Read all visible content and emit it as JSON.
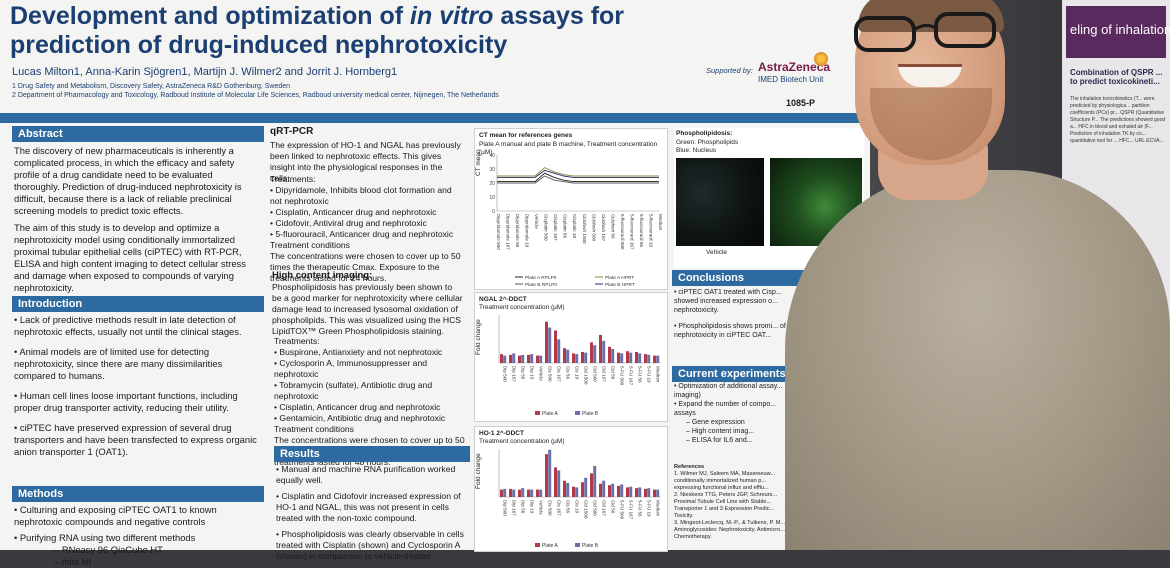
{
  "poster": {
    "title_line1": "Development and optimization of",
    "title_italic": "in vitro",
    "title_line1_end": "assays for",
    "title_line2": "prediction of drug-induced nephrotoxicity",
    "authors": "Lucas Milton1, Anna-Karin Sjögren1, Martijn J. Wilmer2 and Jorrit J. Hornberg1",
    "aff1": "1 Drug Safety and Metabolism, Discovery Safety, AstraZeneca R&D Gothenburg, Sweden",
    "aff2": "2 Department of Pharmacology and Toxicology, Radboud Institute of Molecular Life Sciences, Radboud university medical center, Nijmegen, The Netherlands",
    "supported_by": "Supported by:",
    "sponsor": "AstraZeneca",
    "sponsor_unit": "IMED Biotech Unit",
    "poster_number": "1085-P",
    "abstract": {
      "heading": "Abstract",
      "p1": "The discovery of new pharmaceuticals is inherently a complicated process, in which the efficacy and safety profile of a drug candidate need to be evaluated thoroughly. Prediction of drug-induced nephrotoxicity is difficult, because there is a lack of reliable preclinical screening models to predict toxic effects.",
      "p2": "The aim of this study is to develop and optimize a nephrotoxicity model using conditionally immortalized proximal tubular epithelial cells (ciPTEC) with RT-PCR, ELISA and high content imaging to detect cellular stress and damage when exposed to compounds of varying nephrotoxicity."
    },
    "introduction": {
      "heading": "Introduction",
      "items": [
        "Lack of predictive methods result in late detection of nephrotoxic effects, usually not until the clinical stages.",
        "Animal models are of limited use for detecting nephrotoxicity, since there are many dissimilarities compared to humans.",
        "Human cell lines loose important functions, including proper drug transporter activity, reducing their utility.",
        "ciPTEC have preserved expression of several drug transporters and have been transfected to express organic anion transporter 1 (OAT1)."
      ]
    },
    "methods": {
      "heading": "Methods",
      "items": [
        "Culturing and exposing ciPTEC OAT1 to known nephrotoxic compounds and negative controls",
        "Purifying RNA using two different methods",
        "RNeasy 96 QiaCube HT",
        "mini kit"
      ]
    },
    "qrtpcr": {
      "heading": "qRT-PCR",
      "intro": "The expression of HO-1 and NGAL has previously been linked to nephrotoxic effects. This gives insight into the physiological responses in the cells.",
      "treatments_label": "Treatments:",
      "treatments": [
        "Dipyridamole, Inhibits blood clot formation and not nephrotoxic",
        "Cisplatin, Anticancer drug and nephrotoxic",
        "Cidofovir, Antiviral drug and nephrotoxic",
        "5-fluorouracil, Anticancer drug and nephrotoxic"
      ],
      "conditions": "Treatment conditions",
      "conditions_text": "The concentrations were chosen to cover up to 50 times the therapeutic Cmax. Exposure to the treatments lasted for 24 hours."
    },
    "hci": {
      "heading": "High content imaging:",
      "intro": "Phospholipidosis has previously been shown to be a good marker for nephrotoxicity where cellular damage lead to increased lysosomal oxidation of phospholipids. This was visualized using the HCS LipidTOX™ Green Phospholipidosis staining.",
      "treatments_label": "Treatments:",
      "treatments": [
        "Buspirone, Antianxiety and not nephrotoxic",
        "Cyclosporin A, Immunosuppresser and nephrotoxic",
        "Tobramycin (sulfate), Antibiotic drug and nephrotoxic",
        "Cisplatin, Anticancer drug and nephrotoxic",
        "Gentamicin, Antibiotic drug and nephrotoxic"
      ],
      "conditions": "Treatment conditions",
      "conditions_text": "The concentrations were chosen to cover up to 50 times the therapeutic Cmax. Exposure to the treatments lasted for 48 hours."
    },
    "results": {
      "heading": "Results",
      "items": [
        "Manual and machine RNA purification worked equally well.",
        "Cisplatin and Cidofovir increased expression of HO-1 and NGAL, this was not present in cells treated with the non-toxic compound.",
        "Phospholipidosis was clearly observable in cells treated with Cisplatin (shown) and Cyclosporin A (shown) in comparison to vehicle-treated"
      ]
    },
    "chart1": {
      "title": "CT mean for references genes",
      "subtitle": "Plate A manual and plate B machine, Treatment concentration (µM)",
      "ylabel": "CT mean",
      "legend": [
        "Plate A RPLP0",
        "Plate A HPRT",
        "Plate B RPLP0",
        "Plate B HPRT"
      ]
    },
    "chart2": {
      "title": "NGAL 2^-DDCT",
      "subtitle": "Treatment concentration (µM)",
      "ylabel": "Fold change",
      "legend": [
        "Plate A",
        "Plate B"
      ]
    },
    "chart3": {
      "title": "HO-1 2^-DDCT",
      "subtitle": "Treatment concentration (µM)",
      "ylabel": "Fold change",
      "legend": [
        "Plate A",
        "Plate B"
      ]
    },
    "phospho": {
      "title": "Phospholipidosis:",
      "l1": "Green: Phospholipids",
      "l2": "Blue: Nucleus",
      "caption": "Vehicle"
    },
    "conclusions": {
      "heading": "Conclusions",
      "items": [
        "ciPTEC OAT1 treated with Cisp... showed increased expression o... nephrotoxicity.",
        "Phospholipidosis shows promi... of nephrotoxicity in ciPTEC OAT..."
      ]
    },
    "current": {
      "heading": "Current experiments",
      "items": [
        "Optimization of additional assay... imaging)",
        "Expand the number of compo... assays",
        "Gene expression",
        "High content imag...",
        "ELISA for IL6 and..."
      ]
    },
    "references": {
      "heading": "References",
      "items": [
        "1. Wilmer MJ, Saleem MA, Masereeuw... conditionally immortalized human p... expressing functional influx and efflu...",
        "2. Nieskens TTG, Peters JGP, Schreurs... Proximal Tubule Cell Line with Stable... Transporter 1 and 3 Expression Predic... Toxicity.",
        "3. Mingeot-Leclercq, M.-P., & Tulkens, P. M... Aminoglycosides: Nephrotoxicity. Antimicro... Chemotherapy."
      ]
    }
  },
  "poster2": {
    "title": "eling of inhalation",
    "heading": "Combination of QSPR ... to predict toxicokineti...",
    "text": "The inhalation toxicokinetics (T... were predicted by physiologica... partition coefficients (PCs) pr... QSPR (Quantitative Structure P... The predictions showed good a... HFC in blood and exhaled air (F... Prediction of inhalation TK by co... quantitative tool for ... HFC... URL ECVA..."
  },
  "chart_data": [
    {
      "type": "line",
      "title": "CT mean for references genes",
      "ylabel": "CT mean",
      "ylim": [
        0,
        40
      ],
      "categories": [
        "Dipyridamole 500",
        "Dipyridamole 167",
        "Dipyridamole 56",
        "Dipyridamole 19",
        "Vehicle",
        "Cisplatin 500",
        "Cisplatin 167",
        "Cisplatin 56",
        "Cisplatin 19",
        "Cidofovir 1500",
        "Cidofovir 500",
        "Cidofovir 167",
        "Cidofovir 56",
        "5-fluorouracil 500",
        "5-fluorouracil 167",
        "5-fluorouracil 56",
        "5-fluorouracil 19",
        "Medium"
      ],
      "series": [
        {
          "name": "Plate A RPLP0",
          "values": [
            21,
            21,
            21,
            21,
            21,
            27,
            24,
            22,
            21,
            21,
            21,
            21,
            21,
            21,
            21,
            21,
            21,
            21
          ]
        },
        {
          "name": "Plate A HPRT",
          "values": [
            25,
            25,
            25,
            25,
            25,
            31,
            28,
            26,
            25,
            25,
            25,
            25,
            25,
            25,
            25,
            25,
            25,
            25
          ]
        },
        {
          "name": "Plate B RPLP0",
          "values": [
            20,
            20,
            20,
            20,
            20,
            25,
            22,
            21,
            20,
            20,
            20,
            20,
            20,
            20,
            20,
            20,
            20,
            20
          ]
        },
        {
          "name": "Plate B HPRT",
          "values": [
            24,
            24,
            24,
            24,
            24,
            29,
            27,
            25,
            24,
            24,
            24,
            24,
            24,
            24,
            24,
            24,
            24,
            24
          ]
        }
      ]
    },
    {
      "type": "bar",
      "title": "NGAL 2^-DDCT",
      "ylabel": "Fold change",
      "categories": [
        "Dip 500",
        "Dip 167",
        "Dip 56",
        "Dip 19",
        "Vehicle",
        "Cis 500",
        "Cis 167",
        "Cis 56",
        "Cis 19",
        "Cid 1500",
        "Cid 500",
        "Cid 167",
        "Cid 56",
        "5-FU 500",
        "5-FU 167",
        "5-FU 56",
        "5-FU 19",
        "Medium"
      ],
      "series": [
        {
          "name": "Plate A",
          "values": [
            1.2,
            1.1,
            1.0,
            1.1,
            1.0,
            5.6,
            4.4,
            2.0,
            1.3,
            1.5,
            2.8,
            3.8,
            2.2,
            1.4,
            1.6,
            1.5,
            1.2,
            1.0
          ]
        },
        {
          "name": "Plate B",
          "values": [
            1.0,
            1.3,
            1.1,
            1.2,
            1.0,
            4.8,
            3.2,
            1.8,
            1.2,
            1.4,
            2.4,
            3.0,
            1.9,
            1.3,
            1.4,
            1.3,
            1.1,
            1.0
          ]
        }
      ]
    },
    {
      "type": "bar",
      "title": "HO-1 2^-DDCT",
      "ylabel": "Fold change",
      "categories": [
        "Dip 500",
        "Dip 167",
        "Dip 56",
        "Dip 19",
        "Vehicle",
        "Cis 500",
        "Cis 167",
        "Cis 56",
        "Cis 19",
        "Cid 1500",
        "Cid 500",
        "Cid 167",
        "Cid 56",
        "5-FU 500",
        "5-FU 167",
        "5-FU 56",
        "5-FU 19",
        "Medium"
      ],
      "series": [
        {
          "name": "Plate A",
          "values": [
            1.0,
            1.1,
            1.0,
            1.0,
            1.0,
            5.8,
            4.0,
            2.2,
            1.4,
            2.0,
            3.2,
            1.8,
            1.6,
            1.5,
            1.3,
            1.2,
            1.1,
            1.0
          ]
        },
        {
          "name": "Plate B",
          "values": [
            1.1,
            1.0,
            1.2,
            1.0,
            1.0,
            6.4,
            3.6,
            1.9,
            1.3,
            2.6,
            4.2,
            2.2,
            1.8,
            1.7,
            1.4,
            1.3,
            1.2,
            1.0
          ]
        }
      ]
    }
  ],
  "colors": {
    "title_blue": "#1c3f73",
    "section_blue": "#2d6a9f",
    "plate_a": "#b23a48",
    "plate_b": "#6a6fa8",
    "line1": "#333333"
  }
}
